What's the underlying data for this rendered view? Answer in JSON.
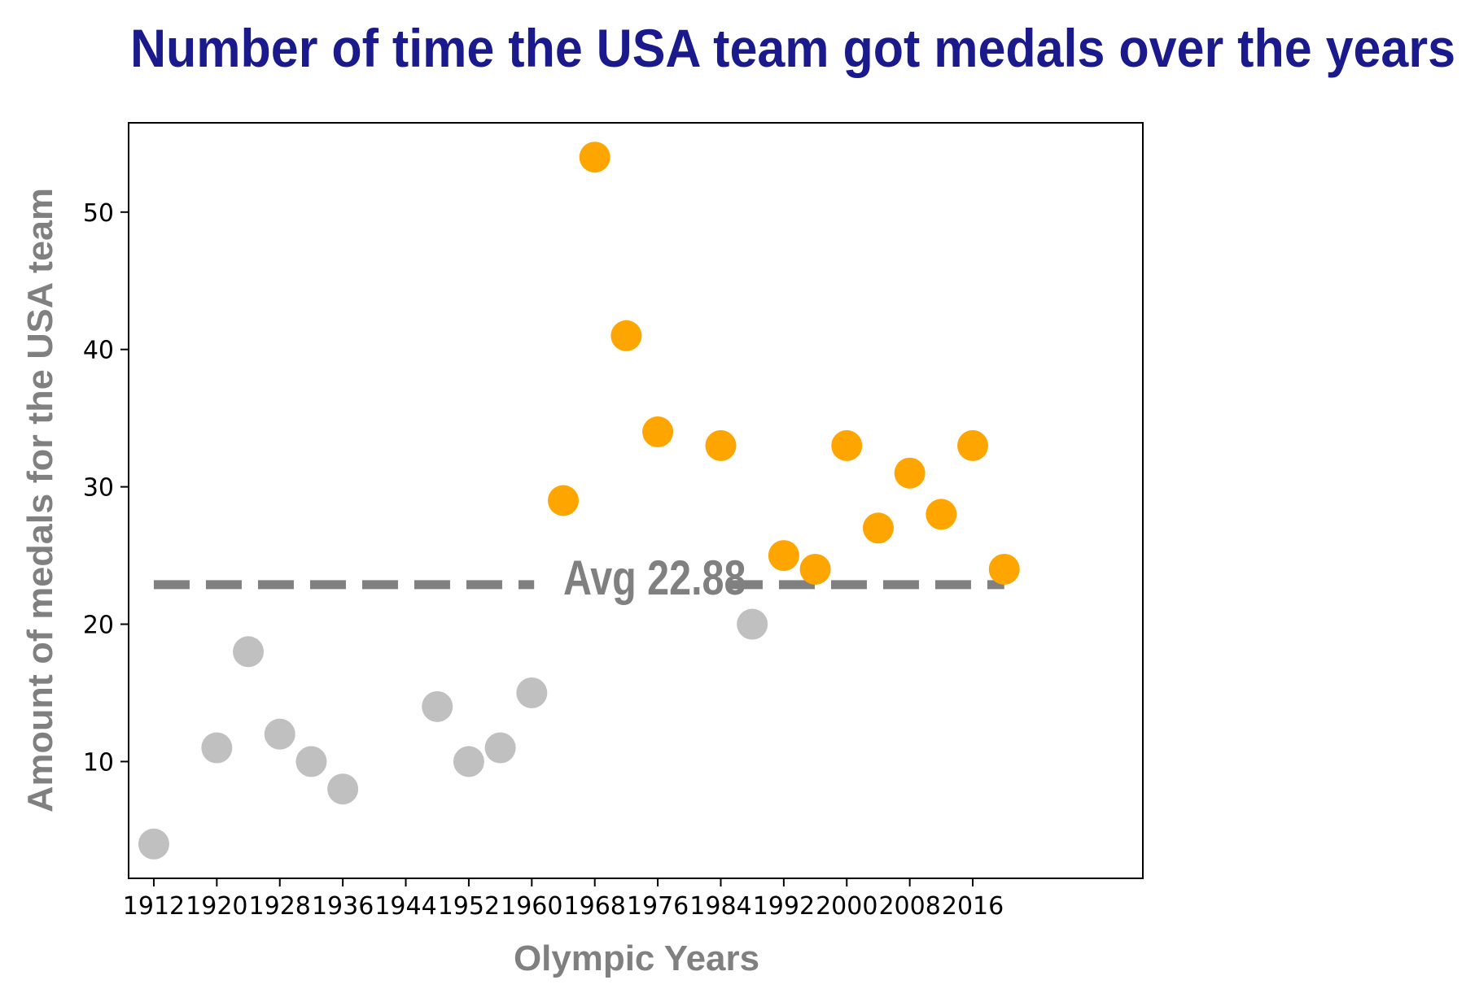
{
  "chart_data": {
    "type": "scatter",
    "title": "Number of time the USA team got medals over the years",
    "xlabel": "Olympic Years",
    "ylabel": "Amount of medals for the USA team",
    "xlim": [
      1908.8,
      2037.6
    ],
    "ylim": [
      1.5,
      56.5
    ],
    "x_ticks": [
      1912,
      1920,
      1928,
      1936,
      1944,
      1952,
      1960,
      1968,
      1976,
      1984,
      1992,
      2000,
      2008,
      2016
    ],
    "x_tick_labels": [
      "1912",
      "1920",
      "1928",
      "1936",
      "1944",
      "1952",
      "1960",
      "1968",
      "1976",
      "1984",
      "1992",
      "2000",
      "2008",
      "2016"
    ],
    "y_ticks": [
      10,
      20,
      30,
      40,
      50
    ],
    "y_tick_labels": [
      "10",
      "20",
      "30",
      "40",
      "50"
    ],
    "grid": false,
    "colors": {
      "below_avg": "#c0c0c0",
      "above_avg": "#ffa500",
      "avg_line": "#808080",
      "title": "#1a1a8c",
      "axis_label": "#808080"
    },
    "average": {
      "value": 22.88,
      "label": "Avg  22.88",
      "x_range": [
        1912,
        2020
      ]
    },
    "points": [
      {
        "x": 1912,
        "y": 4
      },
      {
        "x": 1920,
        "y": 11
      },
      {
        "x": 1924,
        "y": 18
      },
      {
        "x": 1928,
        "y": 12
      },
      {
        "x": 1932,
        "y": 10
      },
      {
        "x": 1936,
        "y": 8
      },
      {
        "x": 1948,
        "y": 14
      },
      {
        "x": 1952,
        "y": 10
      },
      {
        "x": 1956,
        "y": 11
      },
      {
        "x": 1960,
        "y": 15
      },
      {
        "x": 1964,
        "y": 29
      },
      {
        "x": 1968,
        "y": 54
      },
      {
        "x": 1972,
        "y": 41
      },
      {
        "x": 1976,
        "y": 34
      },
      {
        "x": 1984,
        "y": 33
      },
      {
        "x": 1988,
        "y": 20
      },
      {
        "x": 1992,
        "y": 25
      },
      {
        "x": 1996,
        "y": 24
      },
      {
        "x": 2000,
        "y": 33
      },
      {
        "x": 2004,
        "y": 27
      },
      {
        "x": 2008,
        "y": 31
      },
      {
        "x": 2012,
        "y": 28
      },
      {
        "x": 2016,
        "y": 33
      },
      {
        "x": 2020,
        "y": 24
      }
    ]
  }
}
